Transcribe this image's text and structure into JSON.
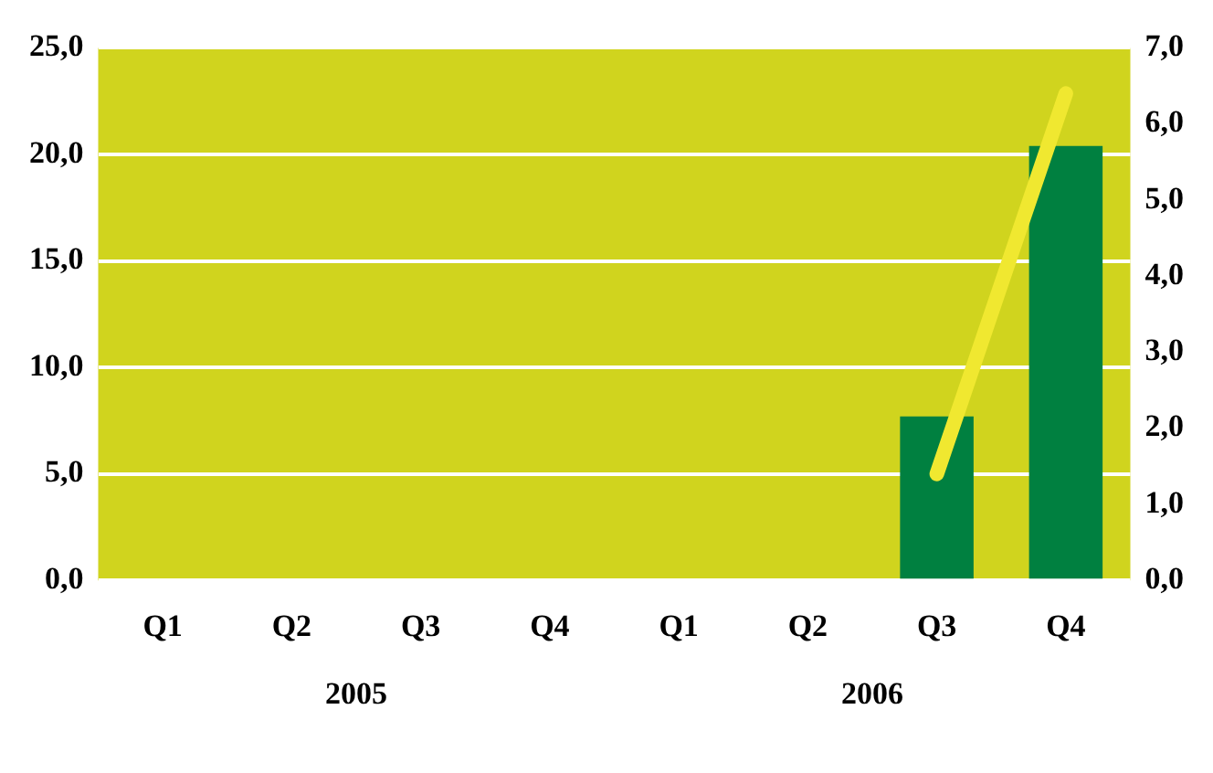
{
  "chart_data": {
    "type": "bar",
    "categories": [
      "Q1",
      "Q2",
      "Q3",
      "Q4",
      "Q1",
      "Q2",
      "Q3",
      "Q4"
    ],
    "series": [
      {
        "color": "#008040",
        "values": [
          null,
          null,
          null,
          null,
          null,
          null,
          7.7,
          20.4
        ]
      },
      {
        "type": "line",
        "axis": "y2",
        "color": "#f0e830",
        "values": [
          null,
          null,
          null,
          null,
          null,
          null,
          1.4,
          6.4
        ]
      }
    ],
    "ylim": [
      0,
      25
    ],
    "yticks": [
      {
        "value": 0,
        "label": "0,0"
      },
      {
        "value": 5,
        "label": "5,0"
      },
      {
        "value": 10,
        "label": "10,0"
      },
      {
        "value": 15,
        "label": "15,0"
      },
      {
        "value": 20,
        "label": "20,0"
      },
      {
        "value": 25,
        "label": "25,0"
      }
    ],
    "y2lim": [
      0,
      7
    ],
    "y2ticks": [
      {
        "value": 0,
        "label": "0,0"
      },
      {
        "value": 1,
        "label": "1,0"
      },
      {
        "value": 2,
        "label": "2,0"
      },
      {
        "value": 3,
        "label": "3,0"
      },
      {
        "value": 4,
        "label": "4,0"
      },
      {
        "value": 5,
        "label": "5,0"
      },
      {
        "value": 6,
        "label": "6,0"
      },
      {
        "value": 7,
        "label": "7,0"
      }
    ],
    "grid": "y",
    "legend": false,
    "marker": "none",
    "annotations": [
      "2005",
      "2006"
    ]
  }
}
